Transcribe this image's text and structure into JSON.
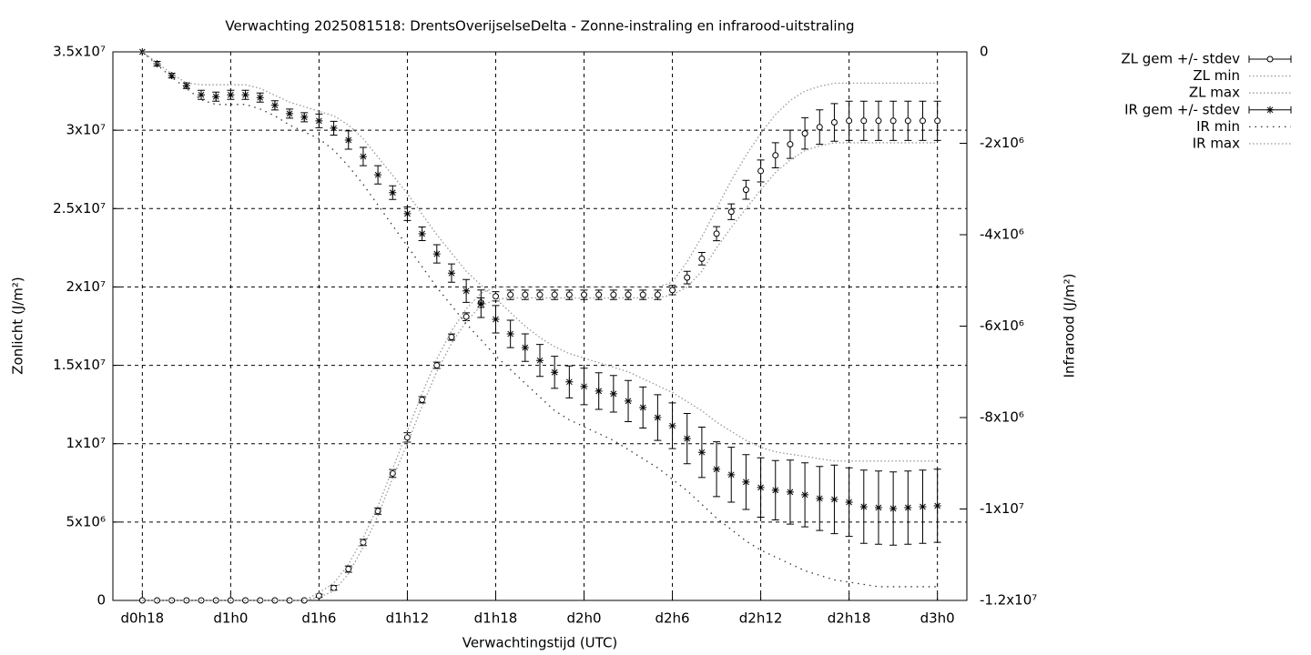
{
  "chart_data": {
    "type": "errorbar",
    "title": "Verwachting 2025081518: DrentsOverijselseDelta - Zonne-instraling en infrarood-uitstraling",
    "xlabel": "Verwachtingstijd (UTC)",
    "ylabel": "Zonlicht (J/m²)",
    "y2label": "Infrarood (J/m²)",
    "x": [
      18,
      19,
      20,
      21,
      22,
      23,
      24,
      25,
      26,
      27,
      28,
      29,
      30,
      31,
      32,
      33,
      34,
      35,
      36,
      37,
      38,
      39,
      40,
      41,
      42,
      43,
      44,
      45,
      46,
      47,
      48,
      49,
      50,
      51,
      52,
      53,
      54,
      55,
      56,
      57,
      58,
      59,
      60,
      61,
      62,
      63,
      64,
      65,
      66,
      67,
      68,
      69,
      70,
      71,
      72
    ],
    "xlim": [
      16,
      74
    ],
    "xticks": [
      {
        "value": 18,
        "label": "d0h18"
      },
      {
        "value": 24,
        "label": "d1h0"
      },
      {
        "value": 30,
        "label": "d1h6"
      },
      {
        "value": 36,
        "label": "d1h12"
      },
      {
        "value": 42,
        "label": "d1h18"
      },
      {
        "value": 48,
        "label": "d2h0"
      },
      {
        "value": 54,
        "label": "d2h6"
      },
      {
        "value": 60,
        "label": "d2h12"
      },
      {
        "value": 66,
        "label": "d2h18"
      },
      {
        "value": 72,
        "label": "d3h0"
      }
    ],
    "ylim": [
      0,
      35000000
    ],
    "yticks": [
      0,
      {
        "value": 5000000,
        "label": "5x10⁶"
      },
      {
        "value": 10000000,
        "label": "1x10⁷"
      },
      {
        "value": 15000000,
        "label": "1.5x10⁷"
      },
      {
        "value": 20000000,
        "label": "2x10⁷"
      },
      {
        "value": 25000000,
        "label": "2.5x10⁷"
      },
      {
        "value": 30000000,
        "label": "3x10⁷"
      },
      {
        "value": 35000000,
        "label": "3.5x10⁷"
      }
    ],
    "y2lim": [
      -12000000,
      0
    ],
    "y2ticks": [
      0,
      {
        "value": -2000000,
        "label": "-2x10⁶"
      },
      {
        "value": -4000000,
        "label": "-4x10⁶"
      },
      {
        "value": -6000000,
        "label": "-6x10⁶"
      },
      {
        "value": -8000000,
        "label": "-8x10⁶"
      },
      {
        "value": -10000000,
        "label": "-1x10⁷"
      },
      {
        "value": -12000000,
        "label": "-1.2x10⁷"
      }
    ],
    "grid": true,
    "legend": "right",
    "series": [
      {
        "name": "ZL gem +/- stdev",
        "color": "#000000",
        "marker": "circle",
        "values": [
          0,
          0,
          0,
          0,
          0,
          0,
          0,
          0,
          0,
          0,
          0,
          0,
          300000,
          800000,
          2000000,
          3700000,
          5700000,
          8100000,
          10400000,
          12800000,
          15000000,
          16800000,
          18100000,
          19000000,
          19400000,
          19500000,
          19500000,
          19500000,
          19500000,
          19500000,
          19500000,
          19500000,
          19500000,
          19500000,
          19500000,
          19500000,
          19800000,
          20600000,
          21800000,
          23400000,
          24800000,
          26200000,
          27400000,
          28400000,
          29100000,
          29800000,
          30200000,
          30500000,
          30600000,
          30600000,
          30600000,
          30600000,
          30600000,
          30600000,
          30600000
        ],
        "errors": [
          0,
          0,
          0,
          0,
          0,
          0,
          0,
          0,
          0,
          0,
          0,
          0,
          100000,
          150000,
          200000,
          200000,
          200000,
          250000,
          300000,
          200000,
          200000,
          200000,
          250000,
          300000,
          300000,
          300000,
          300000,
          300000,
          300000,
          300000,
          300000,
          300000,
          300000,
          300000,
          300000,
          300000,
          300000,
          400000,
          400000,
          450000,
          500000,
          600000,
          700000,
          800000,
          900000,
          1000000,
          1100000,
          1200000,
          1250000,
          1250000,
          1250000,
          1250000,
          1250000,
          1250000,
          1250000
        ]
      },
      {
        "name": "ZL min",
        "color": "#999999",
        "style": "dotted",
        "values": [
          0,
          0,
          0,
          0,
          0,
          0,
          0,
          0,
          0,
          0,
          0,
          0,
          200000,
          600000,
          1700000,
          3400000,
          5400000,
          7800000,
          10000000,
          12400000,
          14600000,
          16400000,
          17800000,
          18800000,
          19200000,
          19300000,
          19300000,
          19300000,
          19300000,
          19300000,
          19300000,
          19300000,
          19300000,
          19300000,
          19300000,
          19300000,
          19500000,
          20000000,
          21000000,
          22500000,
          23800000,
          25000000,
          26200000,
          27300000,
          28100000,
          28700000,
          29000000,
          29200000,
          29200000,
          29200000,
          29200000,
          29200000,
          29200000,
          29200000,
          29200000
        ]
      },
      {
        "name": "ZL max",
        "color": "#999999",
        "style": "dotted",
        "values": [
          0,
          0,
          0,
          0,
          0,
          0,
          0,
          0,
          0,
          0,
          0,
          0,
          500000,
          1100000,
          2300000,
          4000000,
          6000000,
          8400000,
          10800000,
          13200000,
          15400000,
          17200000,
          18600000,
          19600000,
          20000000,
          20000000,
          20000000,
          20000000,
          20000000,
          20000000,
          20000000,
          20000000,
          20000000,
          20000000,
          20000000,
          20000000,
          20300000,
          21600000,
          23200000,
          25000000,
          26800000,
          28400000,
          29800000,
          31000000,
          31900000,
          32500000,
          32800000,
          33000000,
          33000000,
          33000000,
          33000000,
          33000000,
          33000000,
          33000000,
          33000000
        ]
      },
      {
        "name": "IR gem +/- stdev",
        "color": "#000000",
        "marker": "star",
        "axis": "y2",
        "values": [
          0,
          -260000,
          -520000,
          -740000,
          -940000,
          -980000,
          -940000,
          -940000,
          -1000000,
          -1170000,
          -1350000,
          -1430000,
          -1510000,
          -1670000,
          -1930000,
          -2290000,
          -2690000,
          -3080000,
          -3540000,
          -3980000,
          -4420000,
          -4840000,
          -5230000,
          -5510000,
          -5850000,
          -6170000,
          -6470000,
          -6750000,
          -7010000,
          -7220000,
          -7320000,
          -7420000,
          -7480000,
          -7640000,
          -7780000,
          -8000000,
          -8180000,
          -8460000,
          -8760000,
          -9130000,
          -9250000,
          -9410000,
          -9530000,
          -9590000,
          -9630000,
          -9690000,
          -9770000,
          -9790000,
          -9850000,
          -9950000,
          -9970000,
          -9990000,
          -9970000,
          -9950000,
          -9930000
        ],
        "errors": [
          0,
          50000,
          50000,
          60000,
          100000,
          100000,
          100000,
          100000,
          100000,
          100000,
          100000,
          100000,
          150000,
          150000,
          200000,
          200000,
          200000,
          150000,
          150000,
          150000,
          200000,
          200000,
          250000,
          300000,
          300000,
          300000,
          300000,
          350000,
          350000,
          350000,
          400000,
          400000,
          400000,
          450000,
          450000,
          500000,
          500000,
          550000,
          550000,
          600000,
          600000,
          600000,
          650000,
          650000,
          700000,
          700000,
          700000,
          750000,
          750000,
          800000,
          800000,
          800000,
          800000,
          800000,
          800000
        ]
      },
      {
        "name": "IR min",
        "color": "#333333",
        "style": "sparse",
        "axis": "y2",
        "values": [
          0,
          -280000,
          -560000,
          -800000,
          -1050000,
          -1150000,
          -1150000,
          -1150000,
          -1250000,
          -1400000,
          -1600000,
          -1750000,
          -1900000,
          -2150000,
          -2500000,
          -2900000,
          -3350000,
          -3800000,
          -4250000,
          -4700000,
          -5150000,
          -5550000,
          -5950000,
          -6300000,
          -6650000,
          -6950000,
          -7250000,
          -7550000,
          -7850000,
          -8050000,
          -8200000,
          -8350000,
          -8500000,
          -8700000,
          -8900000,
          -9100000,
          -9350000,
          -9600000,
          -9900000,
          -10200000,
          -10450000,
          -10700000,
          -10900000,
          -11050000,
          -11200000,
          -11350000,
          -11450000,
          -11550000,
          -11600000,
          -11650000,
          -11700000,
          -11700000,
          -11700000,
          -11700000,
          -11700000
        ]
      },
      {
        "name": "IR max",
        "color": "#999999",
        "style": "dotted",
        "axis": "y2",
        "values": [
          0,
          -240000,
          -480000,
          -680000,
          -720000,
          -720000,
          -720000,
          -720000,
          -800000,
          -950000,
          -1100000,
          -1200000,
          -1300000,
          -1400000,
          -1600000,
          -1900000,
          -2300000,
          -2700000,
          -3100000,
          -3550000,
          -4000000,
          -4400000,
          -4800000,
          -5100000,
          -5400000,
          -5700000,
          -6000000,
          -6250000,
          -6450000,
          -6600000,
          -6700000,
          -6800000,
          -6900000,
          -7000000,
          -7150000,
          -7300000,
          -7450000,
          -7650000,
          -7850000,
          -8100000,
          -8300000,
          -8500000,
          -8650000,
          -8750000,
          -8800000,
          -8850000,
          -8900000,
          -8950000,
          -8950000,
          -8950000,
          -8950000,
          -8950000,
          -8950000,
          -8950000,
          -8950000
        ]
      }
    ]
  }
}
